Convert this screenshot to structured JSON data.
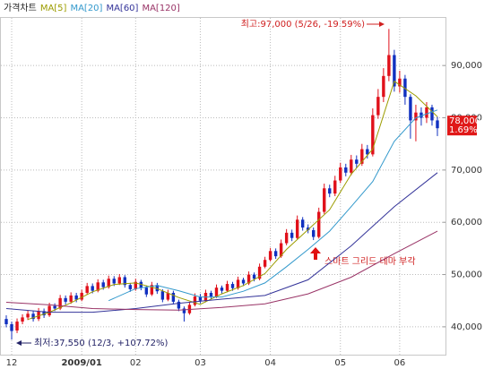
{
  "chart_data": {
    "type": "candlestick",
    "candles": {
      "name": "가격차트",
      "up_color": "#e0101a",
      "down_color": "#1030c0",
      "open": [
        41500,
        40500,
        39300,
        41000,
        41800,
        42500,
        41500,
        43000,
        42200,
        44000,
        43500,
        45500,
        44800,
        46000,
        45200,
        46500,
        47800,
        46900,
        48500,
        47600,
        49200,
        48300,
        49500,
        48000,
        47200,
        48600,
        47500,
        46200,
        48000,
        46800,
        45200,
        46500,
        44800,
        43500,
        42600,
        44200,
        45800,
        45000,
        46500,
        45800,
        47500,
        46900,
        48200,
        47400,
        49000,
        48300,
        50000,
        49200,
        51500,
        52800,
        54500,
        53500,
        56000,
        58000,
        57000,
        60500,
        59000,
        58500,
        57200,
        62000,
        66500,
        65500,
        68000,
        70500,
        69500,
        72000,
        71200,
        74000,
        73000,
        80500,
        84000,
        88000,
        92000,
        86000,
        87500,
        84000,
        79500,
        81000,
        80000,
        82000,
        79500
      ],
      "high": [
        42200,
        41000,
        41600,
        42400,
        43100,
        43000,
        43600,
        43500,
        44600,
        44500,
        46100,
        46000,
        46600,
        46500,
        47100,
        48400,
        48300,
        49100,
        49000,
        49800,
        49700,
        50100,
        49900,
        48400,
        49200,
        49000,
        47900,
        48600,
        48400,
        47200,
        47100,
        46900,
        45200,
        43900,
        44800,
        46400,
        46300,
        47100,
        46900,
        48100,
        47900,
        48800,
        48600,
        49600,
        49400,
        50600,
        50400,
        52100,
        53400,
        55100,
        55000,
        56700,
        58700,
        58600,
        61300,
        61000,
        59600,
        59000,
        62800,
        67400,
        67200,
        68900,
        71400,
        71200,
        72900,
        72800,
        75000,
        74800,
        81800,
        85500,
        89500,
        97000,
        93000,
        89000,
        88200,
        84500,
        82500,
        82000,
        83000,
        82500,
        80200
      ],
      "low": [
        39900,
        37550,
        38800,
        40500,
        41300,
        41000,
        41100,
        41700,
        41900,
        43000,
        43200,
        44300,
        44400,
        44700,
        44900,
        46200,
        46400,
        46600,
        47100,
        47300,
        47800,
        48000,
        47500,
        46700,
        46900,
        47000,
        45700,
        45900,
        46300,
        44700,
        44900,
        44300,
        43000,
        41000,
        42300,
        43900,
        44500,
        44700,
        45300,
        45500,
        46400,
        46600,
        46900,
        47100,
        47800,
        48000,
        48700,
        48900,
        51200,
        52500,
        53000,
        53200,
        55600,
        56400,
        56700,
        58400,
        57900,
        56600,
        56900,
        61600,
        64800,
        65000,
        67500,
        68800,
        69000,
        70400,
        70800,
        72200,
        72600,
        79800,
        83000,
        87000,
        85000,
        84800,
        82500,
        76000,
        75500,
        78500,
        79000,
        78500,
        76500
      ],
      "close": [
        40500,
        39200,
        41000,
        41800,
        42500,
        41500,
        43000,
        42200,
        44000,
        43500,
        45500,
        44800,
        46000,
        45200,
        46500,
        47800,
        46900,
        48500,
        47600,
        49200,
        48300,
        49500,
        48000,
        47200,
        48600,
        47500,
        46200,
        48000,
        46800,
        45200,
        46500,
        44800,
        43500,
        42600,
        44200,
        45800,
        45000,
        46500,
        45800,
        47500,
        46900,
        48200,
        47400,
        49000,
        48300,
        50000,
        49200,
        51500,
        52800,
        54500,
        53500,
        56000,
        58000,
        57000,
        60500,
        59000,
        58500,
        57200,
        62000,
        66500,
        65500,
        68000,
        70500,
        69500,
        72000,
        71200,
        74000,
        73000,
        80500,
        84000,
        88000,
        92000,
        86000,
        87500,
        84000,
        79500,
        81000,
        80000,
        82000,
        79500,
        78000
      ]
    },
    "series": [
      {
        "name": "MA[5]",
        "color": "#9c9c00",
        "x": [
          4,
          8,
          12,
          16,
          20,
          24,
          28,
          32,
          36,
          40,
          44,
          48,
          52,
          56,
          60,
          64,
          68,
          72,
          76,
          80
        ],
        "values": [
          41400,
          42800,
          44600,
          46700,
          48100,
          48400,
          47300,
          45600,
          44300,
          46300,
          47900,
          50200,
          54800,
          58600,
          62400,
          69200,
          74000,
          87000,
          84200,
          80200
        ]
      },
      {
        "name": "MA[20]",
        "color": "#3399cc",
        "x": [
          19,
          24,
          28,
          32,
          36,
          40,
          44,
          48,
          52,
          56,
          60,
          64,
          68,
          72,
          76,
          80
        ],
        "values": [
          45000,
          47300,
          47900,
          46900,
          45700,
          45700,
          46800,
          48400,
          51500,
          54800,
          58300,
          63000,
          67800,
          75500,
          80000,
          81500
        ]
      },
      {
        "name": "MA[60]",
        "color": "#333399",
        "x": [
          0,
          8,
          16,
          24,
          32,
          40,
          48,
          56,
          64,
          72,
          80
        ],
        "values": [
          43500,
          42800,
          42800,
          43500,
          44500,
          45300,
          46000,
          49000,
          55500,
          63000,
          69500
        ]
      },
      {
        "name": "MA[120]",
        "color": "#993366",
        "x": [
          0,
          8,
          16,
          24,
          32,
          40,
          48,
          56,
          64,
          72,
          80
        ],
        "values": [
          44700,
          44200,
          43500,
          43300,
          43200,
          43700,
          44400,
          46300,
          49500,
          54000,
          58300
        ]
      }
    ],
    "xlim": [
      -1,
      81.5
    ],
    "xticks": [
      {
        "value": 1,
        "label": "12"
      },
      {
        "value": 14,
        "label": "2009/01"
      },
      {
        "value": 24,
        "label": "02"
      },
      {
        "value": 36,
        "label": "03"
      },
      {
        "value": 49,
        "label": "04"
      },
      {
        "value": 62,
        "label": "05"
      },
      {
        "value": 73,
        "label": "06"
      }
    ],
    "ylim": [
      34670,
      99110
    ],
    "yticks": [
      {
        "value": 40000,
        "label": "40,000"
      },
      {
        "value": 50000,
        "label": "50,000"
      },
      {
        "value": 60000,
        "label": "60,000"
      },
      {
        "value": 70000,
        "label": "70,000"
      },
      {
        "value": 80000,
        "label": "80,000"
      },
      {
        "value": 90000,
        "label": "90,000"
      }
    ],
    "grid": true,
    "last_price": {
      "value": 78000,
      "label": "78,000"
    },
    "change": {
      "value": 1.69,
      "label": "1.69%"
    },
    "annotations": [
      "최고:97,000 (5/26, -19.59%)",
      "최저:37,550 (12/3, +107.72%)",
      "스마트 그리드 테마 부각"
    ]
  }
}
